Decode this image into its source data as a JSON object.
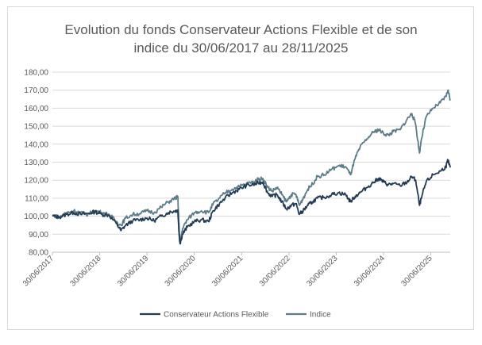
{
  "chart_data": {
    "type": "line",
    "title_line1": "Evolution du fonds Conservateur Actions Flexible et de son",
    "title_line2": "indice du 30/06/2017 au 28/11/2025",
    "xlabel": "",
    "ylabel": "",
    "ylim": [
      80,
      180
    ],
    "yticks": [
      "80,00",
      "90,00",
      "100,00",
      "110,00",
      "120,00",
      "130,00",
      "140,00",
      "150,00",
      "160,00",
      "170,00",
      "180,00"
    ],
    "xticks": [
      "30/06/2017",
      "30/06/2018",
      "30/06/2019",
      "30/06/2020",
      "30/06/2021",
      "30/06/2022",
      "30/06/2023",
      "30/06/2024",
      "30/06/2025"
    ],
    "xrange": [
      "30/06/2017",
      "28/11/2025"
    ],
    "grid": true,
    "legend_position": "bottom",
    "series": [
      {
        "name": "Conservateur Actions Flexible",
        "color": "#243b55",
        "points": [
          [
            2017.5,
            100
          ],
          [
            2017.65,
            99.5
          ],
          [
            2017.8,
            101
          ],
          [
            2017.95,
            102
          ],
          [
            2018.1,
            101
          ],
          [
            2018.25,
            101.5
          ],
          [
            2018.4,
            102.5
          ],
          [
            2018.55,
            101
          ],
          [
            2018.7,
            100.5
          ],
          [
            2018.85,
            96
          ],
          [
            2018.95,
            92
          ],
          [
            2019.05,
            95
          ],
          [
            2019.2,
            97.5
          ],
          [
            2019.35,
            98
          ],
          [
            2019.5,
            99
          ],
          [
            2019.65,
            97.5
          ],
          [
            2019.8,
            100
          ],
          [
            2019.95,
            102
          ],
          [
            2020.1,
            103
          ],
          [
            2020.15,
            103.5
          ],
          [
            2020.18,
            89
          ],
          [
            2020.2,
            85
          ],
          [
            2020.25,
            90
          ],
          [
            2020.35,
            94
          ],
          [
            2020.5,
            97
          ],
          [
            2020.65,
            98
          ],
          [
            2020.8,
            97
          ],
          [
            2020.9,
            103
          ],
          [
            2021.0,
            106
          ],
          [
            2021.15,
            110
          ],
          [
            2021.3,
            113
          ],
          [
            2021.45,
            115
          ],
          [
            2021.6,
            117
          ],
          [
            2021.75,
            117.5
          ],
          [
            2021.85,
            118.5
          ],
          [
            2021.95,
            119
          ],
          [
            2022.05,
            113
          ],
          [
            2022.15,
            111
          ],
          [
            2022.25,
            112
          ],
          [
            2022.35,
            108
          ],
          [
            2022.45,
            104
          ],
          [
            2022.55,
            106
          ],
          [
            2022.65,
            107
          ],
          [
            2022.72,
            101
          ],
          [
            2022.8,
            103
          ],
          [
            2022.9,
            106
          ],
          [
            2023.0,
            108
          ],
          [
            2023.1,
            110
          ],
          [
            2023.25,
            110.5
          ],
          [
            2023.4,
            112
          ],
          [
            2023.55,
            113
          ],
          [
            2023.7,
            112
          ],
          [
            2023.8,
            108
          ],
          [
            2023.9,
            111
          ],
          [
            2024.0,
            113
          ],
          [
            2024.15,
            116
          ],
          [
            2024.3,
            119
          ],
          [
            2024.4,
            121
          ],
          [
            2024.5,
            119
          ],
          [
            2024.6,
            117.5
          ],
          [
            2024.7,
            118
          ],
          [
            2024.85,
            117
          ],
          [
            2025.0,
            119
          ],
          [
            2025.1,
            122
          ],
          [
            2025.18,
            120
          ],
          [
            2025.26,
            106
          ],
          [
            2025.3,
            110
          ],
          [
            2025.4,
            119
          ],
          [
            2025.55,
            123
          ],
          [
            2025.7,
            125
          ],
          [
            2025.82,
            127.5
          ],
          [
            2025.86,
            131
          ],
          [
            2025.91,
            127
          ]
        ]
      },
      {
        "name": "Indice",
        "color": "#5d7c89",
        "points": [
          [
            2017.5,
            100.5
          ],
          [
            2017.65,
            99.5
          ],
          [
            2017.8,
            102
          ],
          [
            2017.95,
            103
          ],
          [
            2018.1,
            102
          ],
          [
            2018.25,
            101
          ],
          [
            2018.4,
            103
          ],
          [
            2018.55,
            102
          ],
          [
            2018.7,
            101
          ],
          [
            2018.85,
            97
          ],
          [
            2018.95,
            95
          ],
          [
            2019.05,
            99
          ],
          [
            2019.2,
            101
          ],
          [
            2019.35,
            101.5
          ],
          [
            2019.5,
            103
          ],
          [
            2019.65,
            102
          ],
          [
            2019.8,
            105
          ],
          [
            2019.95,
            108
          ],
          [
            2020.1,
            110
          ],
          [
            2020.15,
            111
          ],
          [
            2020.18,
            93
          ],
          [
            2020.2,
            85
          ],
          [
            2020.25,
            93
          ],
          [
            2020.35,
            98
          ],
          [
            2020.5,
            102
          ],
          [
            2020.65,
            103
          ],
          [
            2020.8,
            102
          ],
          [
            2020.9,
            107
          ],
          [
            2021.0,
            109
          ],
          [
            2021.15,
            113
          ],
          [
            2021.3,
            115
          ],
          [
            2021.45,
            116.5
          ],
          [
            2021.6,
            118
          ],
          [
            2021.75,
            119
          ],
          [
            2021.85,
            120.5
          ],
          [
            2021.95,
            121
          ],
          [
            2022.05,
            116
          ],
          [
            2022.15,
            114
          ],
          [
            2022.25,
            116
          ],
          [
            2022.35,
            112
          ],
          [
            2022.45,
            108
          ],
          [
            2022.55,
            112
          ],
          [
            2022.65,
            112
          ],
          [
            2022.72,
            106
          ],
          [
            2022.8,
            110
          ],
          [
            2022.9,
            115
          ],
          [
            2023.0,
            118
          ],
          [
            2023.1,
            122
          ],
          [
            2023.25,
            123
          ],
          [
            2023.4,
            126
          ],
          [
            2023.55,
            128
          ],
          [
            2023.7,
            127.5
          ],
          [
            2023.8,
            123
          ],
          [
            2023.9,
            132
          ],
          [
            2024.0,
            138
          ],
          [
            2024.15,
            143
          ],
          [
            2024.3,
            147
          ],
          [
            2024.4,
            148
          ],
          [
            2024.5,
            146
          ],
          [
            2024.6,
            145
          ],
          [
            2024.7,
            147
          ],
          [
            2024.85,
            148
          ],
          [
            2025.0,
            154
          ],
          [
            2025.1,
            157
          ],
          [
            2025.18,
            151
          ],
          [
            2025.26,
            135
          ],
          [
            2025.3,
            143
          ],
          [
            2025.4,
            155
          ],
          [
            2025.55,
            160
          ],
          [
            2025.7,
            163
          ],
          [
            2025.82,
            166.5
          ],
          [
            2025.86,
            170
          ],
          [
            2025.91,
            165
          ]
        ]
      }
    ]
  }
}
